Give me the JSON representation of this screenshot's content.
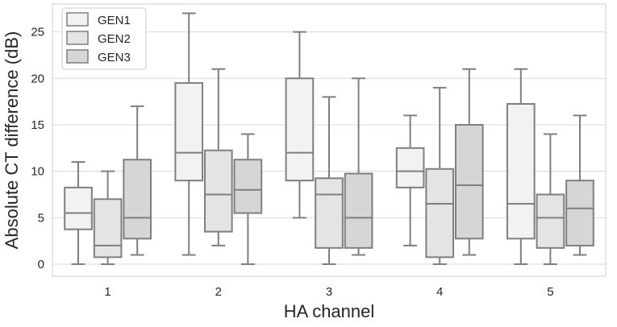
{
  "chart_data": {
    "type": "box",
    "xlabel": "HA channel",
    "ylabel": "Absolute CT difference (dB)",
    "ylim": [
      -1.3,
      28
    ],
    "yticks": [
      0,
      5,
      10,
      15,
      20,
      25
    ],
    "grid": true,
    "legend_position": "top-left",
    "categories": [
      "1",
      "2",
      "3",
      "4",
      "5"
    ],
    "series": [
      {
        "name": "GEN1",
        "color": "#f2f2f2",
        "boxes": [
          {
            "whislo": 0,
            "q1": 3.75,
            "med": 5.5,
            "q3": 8.25,
            "whishi": 11
          },
          {
            "whislo": 1,
            "q1": 9,
            "med": 12,
            "q3": 19.5,
            "whishi": 27
          },
          {
            "whislo": 5,
            "q1": 9,
            "med": 12,
            "q3": 20,
            "whishi": 25
          },
          {
            "whislo": 2,
            "q1": 8.25,
            "med": 10,
            "q3": 12.5,
            "whishi": 16
          },
          {
            "whislo": 0,
            "q1": 2.75,
            "med": 6.5,
            "q3": 17.25,
            "whishi": 21
          }
        ]
      },
      {
        "name": "GEN2",
        "color": "#e4e4e4",
        "boxes": [
          {
            "whislo": 0,
            "q1": 0.75,
            "med": 2,
            "q3": 7,
            "whishi": 10
          },
          {
            "whislo": 2,
            "q1": 3.5,
            "med": 7.5,
            "q3": 12.25,
            "whishi": 21
          },
          {
            "whislo": 0,
            "q1": 1.75,
            "med": 7.5,
            "q3": 9.25,
            "whishi": 18
          },
          {
            "whislo": 0,
            "q1": 0.75,
            "med": 6.5,
            "q3": 10.25,
            "whishi": 19
          },
          {
            "whislo": 0,
            "q1": 1.75,
            "med": 5,
            "q3": 7.5,
            "whishi": 14
          }
        ]
      },
      {
        "name": "GEN3",
        "color": "#d6d6d6",
        "boxes": [
          {
            "whislo": 1,
            "q1": 2.75,
            "med": 5,
            "q3": 11.25,
            "whishi": 17
          },
          {
            "whislo": 0,
            "q1": 5.5,
            "med": 8,
            "q3": 11.25,
            "whishi": 14
          },
          {
            "whislo": 1,
            "q1": 1.75,
            "med": 5,
            "q3": 9.75,
            "whishi": 20
          },
          {
            "whislo": 1,
            "q1": 2.75,
            "med": 8.5,
            "q3": 15,
            "whishi": 21
          },
          {
            "whislo": 1,
            "q1": 2,
            "med": 6,
            "q3": 9,
            "whishi": 16
          }
        ]
      }
    ]
  }
}
